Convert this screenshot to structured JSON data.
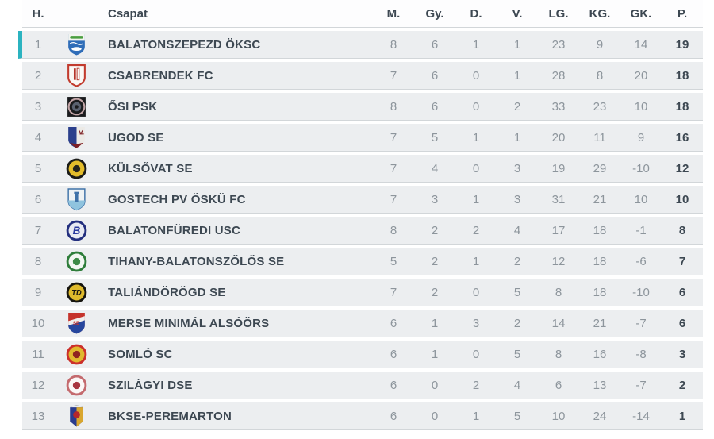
{
  "theme": {
    "accent_teal": "#2bb3c0",
    "row_bg": "#eceef0",
    "page_bg": "#ffffff",
    "text_dark": "#3d4852",
    "text_muted": "#8d959c",
    "separator": "#d2d6d9"
  },
  "table": {
    "columns": [
      "H.",
      "Csapat",
      "M.",
      "Gy.",
      "D.",
      "V.",
      "LG.",
      "KG.",
      "GK.",
      "P."
    ],
    "rows": [
      {
        "rank": 1,
        "team": "BALATONSZEPEZD ÖKSC",
        "played": 8,
        "wins": 6,
        "draws": 1,
        "losses": 1,
        "goals_for": 23,
        "goals_against": 9,
        "goal_diff": 14,
        "points": 19,
        "highlight": true,
        "crest": {
          "icon": "balatonszepezd-crest-icon",
          "type": "shield-band",
          "colors": [
            "#2f6db8",
            "#f2f4f0",
            "#4a9e3f"
          ]
        }
      },
      {
        "rank": 2,
        "team": "CSABRENDEK FC",
        "played": 7,
        "wins": 6,
        "draws": 0,
        "losses": 1,
        "goals_for": 28,
        "goals_against": 8,
        "goal_diff": 20,
        "points": 18,
        "highlight": false,
        "crest": {
          "icon": "csabrendek-crest-icon",
          "type": "shield-stripes",
          "colors": [
            "#c23b2e",
            "#faf8f5",
            "#b5342a"
          ]
        }
      },
      {
        "rank": 3,
        "team": "ŐSI PSK",
        "played": 8,
        "wins": 6,
        "draws": 0,
        "losses": 2,
        "goals_for": 33,
        "goals_against": 23,
        "goal_diff": 10,
        "points": 18,
        "highlight": false,
        "crest": {
          "icon": "osi-psk-crest-icon",
          "type": "square-ball",
          "colors": [
            "#1a1b1d",
            "#c2a4a6",
            "#5a6270"
          ]
        }
      },
      {
        "rank": 4,
        "team": "UGOD SE",
        "played": 7,
        "wins": 5,
        "draws": 1,
        "losses": 1,
        "goals_for": 20,
        "goals_against": 11,
        "goal_diff": 9,
        "points": 16,
        "highlight": false,
        "crest": {
          "icon": "ugod-crest-icon",
          "type": "shield-split",
          "colors": [
            "#2b3f8c",
            "#eceae6",
            "#7e1f24"
          ]
        }
      },
      {
        "rank": 5,
        "team": "KÜLSŐVAT SE",
        "played": 7,
        "wins": 4,
        "draws": 0,
        "losses": 3,
        "goals_for": 19,
        "goals_against": 29,
        "goal_diff": -10,
        "points": 12,
        "highlight": false,
        "crest": {
          "icon": "kulsovat-crest-icon",
          "type": "circle",
          "colors": [
            "#1b1b18",
            "#e3bc2b",
            "#24231d"
          ]
        }
      },
      {
        "rank": 6,
        "team": "GOSTECH PV ÖSKÜ FC",
        "played": 7,
        "wins": 3,
        "draws": 1,
        "losses": 3,
        "goals_for": 31,
        "goals_against": 21,
        "goal_diff": 10,
        "points": 10,
        "highlight": false,
        "crest": {
          "icon": "osku-crest-icon",
          "type": "shield-light",
          "colors": [
            "#3f72a8",
            "#eef2f4",
            "#8fc3de"
          ]
        }
      },
      {
        "rank": 7,
        "team": "BALATONFÜREDI USC",
        "played": 8,
        "wins": 2,
        "draws": 2,
        "losses": 4,
        "goals_for": 17,
        "goals_against": 18,
        "goal_diff": -1,
        "points": 8,
        "highlight": false,
        "crest": {
          "icon": "balatonfured-crest-icon",
          "type": "circle-letter",
          "text": "B",
          "colors": [
            "#232f7e",
            "#e8eaf2",
            "#2a3a9e"
          ]
        }
      },
      {
        "rank": 8,
        "team": "TIHANY-BALATONSZŐLŐS SE",
        "played": 5,
        "wins": 2,
        "draws": 1,
        "losses": 2,
        "goals_for": 12,
        "goals_against": 18,
        "goal_diff": -6,
        "points": 7,
        "highlight": false,
        "crest": {
          "icon": "tihany-crest-icon",
          "type": "circle",
          "colors": [
            "#2e7d3a",
            "#f2f7f2",
            "#3c8a46"
          ]
        }
      },
      {
        "rank": 9,
        "team": "TALIÁNDÖRÖGD SE",
        "played": 7,
        "wins": 2,
        "draws": 0,
        "losses": 5,
        "goals_for": 8,
        "goals_against": 18,
        "goal_diff": -10,
        "points": 6,
        "highlight": false,
        "crest": {
          "icon": "taliandorogd-crest-icon",
          "type": "circle-letter",
          "text": "TD",
          "colors": [
            "#16150f",
            "#dfba2c",
            "#16140f"
          ]
        }
      },
      {
        "rank": 10,
        "team": "MERSE MINIMÁL ALSÓÖRS",
        "played": 6,
        "wins": 1,
        "draws": 3,
        "losses": 2,
        "goals_for": 14,
        "goals_against": 21,
        "goal_diff": -7,
        "points": 6,
        "highlight": false,
        "crest": {
          "icon": "alsoors-crest-icon",
          "type": "shield-diag",
          "colors": [
            "#c5332c",
            "#f0efed",
            "#27479e"
          ]
        }
      },
      {
        "rank": 11,
        "team": "SOMLÓ SC",
        "played": 6,
        "wins": 1,
        "draws": 0,
        "losses": 5,
        "goals_for": 8,
        "goals_against": 16,
        "goal_diff": -8,
        "points": 3,
        "highlight": false,
        "crest": {
          "icon": "somlo-crest-icon",
          "type": "circle",
          "colors": [
            "#cc2f2a",
            "#e0b92e",
            "#8f2420"
          ]
        }
      },
      {
        "rank": 12,
        "team": "SZILÁGYI DSE",
        "played": 6,
        "wins": 0,
        "draws": 2,
        "losses": 4,
        "goals_for": 6,
        "goals_against": 13,
        "goal_diff": -7,
        "points": 2,
        "highlight": false,
        "crest": {
          "icon": "szilagyi-crest-icon",
          "type": "circle",
          "colors": [
            "#c46a6e",
            "#fbf7f7",
            "#a83540"
          ]
        }
      },
      {
        "rank": 13,
        "team": "BKSE-PEREMARTON",
        "played": 6,
        "wins": 0,
        "draws": 1,
        "losses": 5,
        "goals_for": 10,
        "goals_against": 24,
        "goal_diff": -14,
        "points": 1,
        "highlight": false,
        "crest": {
          "icon": "peremarton-crest-icon",
          "type": "pennant",
          "colors": [
            "#2b3c8e",
            "#d9a62e",
            "#b5272b"
          ]
        }
      }
    ]
  }
}
